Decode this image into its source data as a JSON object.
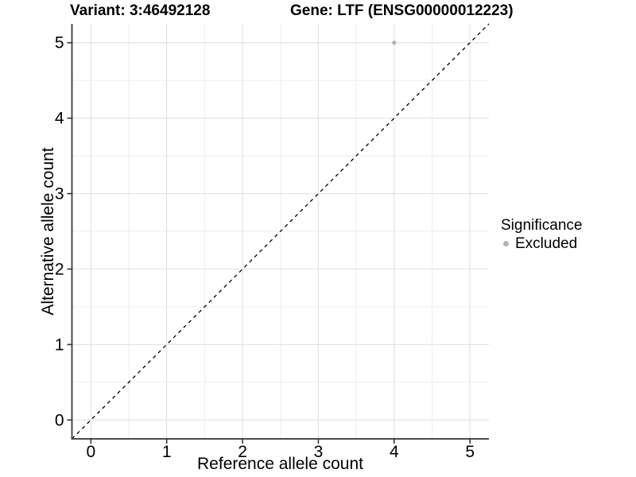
{
  "header": {
    "variant_title": "Variant: 3:46492128",
    "gene_title": "Gene: LTF (ENSG00000012223)"
  },
  "chart_data": {
    "type": "scatter",
    "xlabel": "Reference allele count",
    "ylabel": "Alternative allele count",
    "xlim": [
      -0.25,
      5.25
    ],
    "ylim": [
      -0.25,
      5.25
    ],
    "x_ticks": [
      0,
      1,
      2,
      3,
      4,
      5
    ],
    "y_ticks": [
      0,
      1,
      2,
      3,
      4,
      5
    ],
    "grid": {
      "major": true,
      "minor": true,
      "minor_step": 0.5
    },
    "reference_line": {
      "type": "identity",
      "equation": "y = x",
      "style": "dashed",
      "color": "#000000"
    },
    "series": [
      {
        "name": "Excluded",
        "color": "#b3b3b3",
        "points": [
          {
            "x": 4,
            "y": 5
          }
        ]
      }
    ],
    "legend": {
      "title": "Significance",
      "position": "right",
      "items": [
        {
          "label": "Excluded",
          "color": "#b3b3b3"
        }
      ]
    }
  }
}
